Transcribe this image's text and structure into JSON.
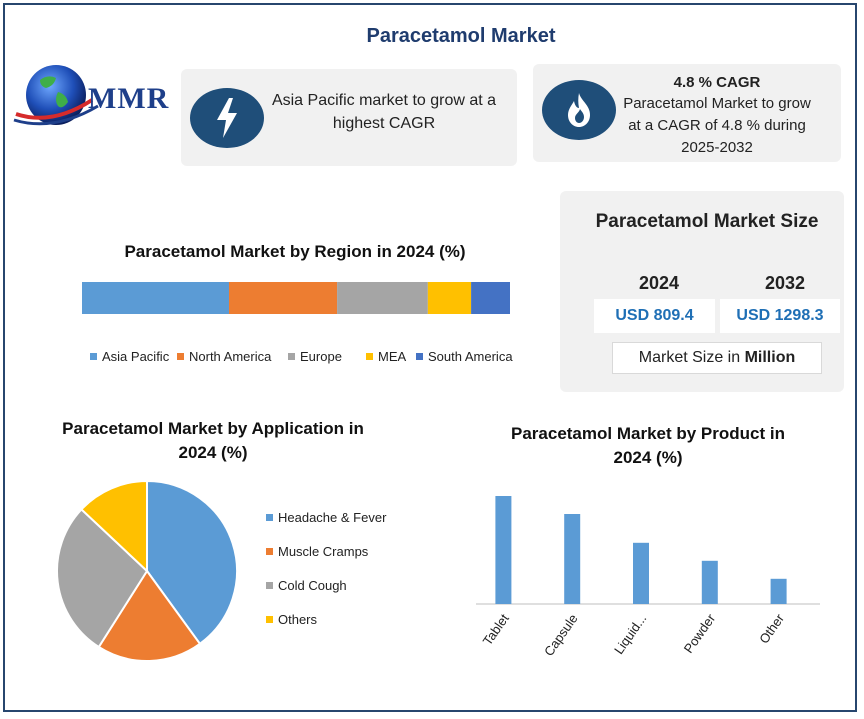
{
  "title": "Paracetamol Market",
  "logo": {
    "text": "MMR"
  },
  "highlight_cards": [
    {
      "icon": "lightning-icon",
      "text": "Asia Pacific market to grow at a highest CAGR"
    },
    {
      "icon": "flame-icon",
      "heading": "4.8 % CAGR",
      "text": "Paracetamol Market to grow at a CAGR of 4.8 % during 2025-2032"
    }
  ],
  "market_size": {
    "title": "Paracetamol Market Size",
    "years": [
      "2024",
      "2032"
    ],
    "values": [
      "USD 809.4",
      "USD 1298.3"
    ],
    "unit_prefix": "Market Size in ",
    "unit_bold": "Million"
  },
  "colors": {
    "blue": "#5b9bd5",
    "orange": "#ed7d31",
    "gray": "#a5a5a5",
    "yellow": "#ffc000",
    "navy": "#4472c4",
    "dark_blue": "#1f4e79"
  },
  "chart_data": [
    {
      "type": "bar",
      "orientation": "horizontal-stacked",
      "title": "Paracetamol Market by Region in 2024 (%)",
      "legend_position": "bottom",
      "series": [
        {
          "name": "Asia Pacific",
          "value": 34,
          "color": "#5b9bd5"
        },
        {
          "name": "North America",
          "value": 25,
          "color": "#ed7d31"
        },
        {
          "name": "Europe",
          "value": 21,
          "color": "#a5a5a5"
        },
        {
          "name": "MEA",
          "value": 10,
          "color": "#ffc000"
        },
        {
          "name": "South America",
          "value": 9,
          "color": "#4472c4"
        }
      ]
    },
    {
      "type": "pie",
      "title": "Paracetamol Market by Application in 2024 (%)",
      "legend_position": "right",
      "slices": [
        {
          "name": "Headache & Fever",
          "value": 40,
          "color": "#5b9bd5"
        },
        {
          "name": "Muscle Cramps",
          "value": 19,
          "color": "#ed7d31"
        },
        {
          "name": "Cold Cough",
          "value": 28,
          "color": "#a5a5a5"
        },
        {
          "name": "Others",
          "value": 13,
          "color": "#ffc000"
        }
      ]
    },
    {
      "type": "bar",
      "title": "Paracetamol Market by Product in 2024 (%)",
      "categories": [
        "Tablet",
        "Capsule",
        "Liquid...",
        "Powder",
        "Other"
      ],
      "values": [
        30,
        25,
        17,
        12,
        7
      ],
      "color": "#5b9bd5",
      "grid": false
    }
  ]
}
